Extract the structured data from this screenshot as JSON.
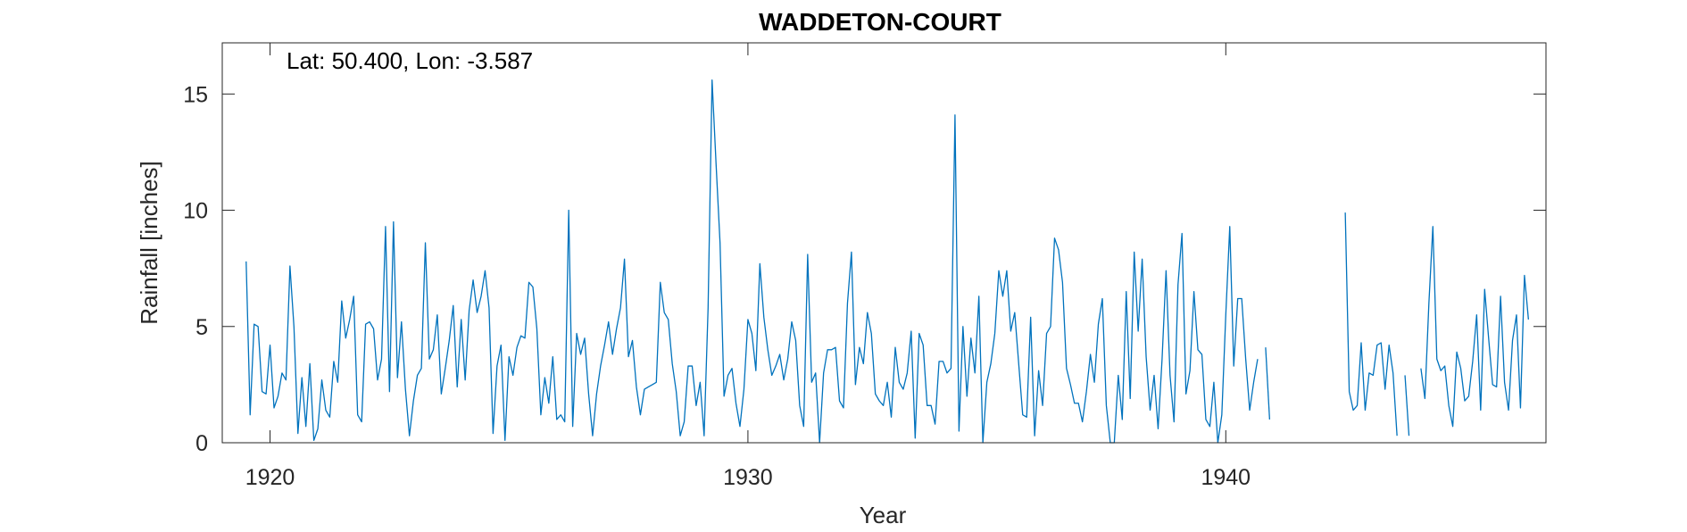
{
  "chart_data": {
    "type": "line",
    "title": "WADDETON-COURT",
    "annotation": "Lat: 50.400, Lon: -3.587",
    "xlabel": "Year",
    "ylabel": "Rainfall [inches]",
    "xlim": [
      1919,
      1946.7
    ],
    "ylim": [
      0,
      17.2
    ],
    "xticks": [
      1920,
      1930,
      1940
    ],
    "yticks": [
      0,
      5,
      10,
      15
    ],
    "xtick_labels": [
      "1920",
      "1930",
      "1940"
    ],
    "ytick_labels": [
      "0",
      "5",
      "10",
      "15"
    ],
    "grid": false,
    "box": true,
    "series": [
      {
        "color": "#0072BD",
        "x_start": 1919.5,
        "x_step": 0.083333,
        "values": [
          7.8,
          1.2,
          5.1,
          5.0,
          2.2,
          2.1,
          4.2,
          1.5,
          2.0,
          3.0,
          2.7,
          7.6,
          5.0,
          0.4,
          2.8,
          0.7,
          3.4,
          0.1,
          0.6,
          2.7,
          1.4,
          1.1,
          3.5,
          2.6,
          6.1,
          4.5,
          5.3,
          6.3,
          1.2,
          0.9,
          5.1,
          5.2,
          4.9,
          2.7,
          3.6,
          9.3,
          2.2,
          9.5,
          2.8,
          5.2,
          2.3,
          0.3,
          1.8,
          2.9,
          3.2,
          8.6,
          3.6,
          4.0,
          5.5,
          2.1,
          3.2,
          4.4,
          5.9,
          2.4,
          5.3,
          2.7,
          5.7,
          7.0,
          5.6,
          6.3,
          7.4,
          5.8,
          0.4,
          3.3,
          4.2,
          0.1,
          3.7,
          2.9,
          4.1,
          4.6,
          4.5,
          6.9,
          6.7,
          4.9,
          1.2,
          2.8,
          1.7,
          3.7,
          1.0,
          1.2,
          0.9,
          10.0,
          0.7,
          4.7,
          3.8,
          4.5,
          2.1,
          0.3,
          2.1,
          3.3,
          4.2,
          5.2,
          3.8,
          4.9,
          5.8,
          7.9,
          3.7,
          4.4,
          2.4,
          1.2,
          2.3,
          2.4,
          2.5,
          2.6,
          6.9,
          5.6,
          5.3,
          3.4,
          2.2,
          0.3,
          0.9,
          3.3,
          3.3,
          1.6,
          2.6,
          0.3,
          5.8,
          15.6,
          12.0,
          8.6,
          2.0,
          2.9,
          3.2,
          1.7,
          0.7,
          2.3,
          5.3,
          4.7,
          3.1,
          7.7,
          5.4,
          4.0,
          2.9,
          3.3,
          3.8,
          2.7,
          3.6,
          5.2,
          4.4,
          1.6,
          0.7,
          8.1,
          2.6,
          3.0,
          0.0,
          3.0,
          4.0,
          4.0,
          4.1,
          1.8,
          1.5,
          6.0,
          8.2,
          2.5,
          4.1,
          3.4,
          5.6,
          4.7,
          2.1,
          1.8,
          1.6,
          2.6,
          1.1,
          4.1,
          2.6,
          2.3,
          3.0,
          4.8,
          0.2,
          4.7,
          4.2,
          1.6,
          1.6,
          0.8,
          3.5,
          3.5,
          3.0,
          3.2,
          14.1,
          0.5,
          5.0,
          2.0,
          4.5,
          3.0,
          6.3,
          0.0,
          2.6,
          3.4,
          4.7,
          7.4,
          6.3,
          7.4,
          4.8,
          5.6,
          3.4,
          1.2,
          1.1,
          5.4,
          0.3,
          3.1,
          1.6,
          4.7,
          5.0,
          8.8,
          8.3,
          6.9,
          3.2,
          2.5,
          1.7,
          1.7,
          0.9,
          2.2,
          3.8,
          2.6,
          5.1,
          6.2,
          1.6,
          0.0,
          0.0,
          2.9,
          1.0,
          6.5,
          1.9,
          8.2,
          4.8,
          7.9,
          3.7,
          1.4,
          2.9,
          0.6,
          3.6,
          7.4,
          2.9,
          0.9,
          6.8,
          9.0,
          2.1,
          3.1,
          6.5,
          4.0,
          3.8,
          1.0,
          0.7,
          2.6,
          0.0,
          1.2,
          5.5,
          9.3,
          3.3,
          6.2,
          6.2,
          3.6,
          1.4,
          2.6,
          3.6,
          null,
          4.1,
          1.0,
          null,
          null,
          null,
          null,
          null,
          null,
          null,
          null,
          null,
          null,
          null,
          null,
          null,
          null,
          null,
          null,
          null,
          null,
          9.9,
          2.2,
          1.4,
          1.6,
          4.3,
          1.4,
          3.0,
          2.9,
          4.2,
          4.3,
          2.3,
          4.2,
          3.0,
          0.3,
          null,
          2.9,
          0.3,
          null,
          null,
          3.2,
          1.9,
          6.0,
          9.3,
          3.6,
          3.1,
          3.3,
          1.6,
          0.7,
          3.9,
          3.2,
          1.8,
          2.0,
          3.5,
          5.5,
          1.4,
          6.6,
          4.5,
          2.5,
          2.4,
          6.3,
          2.6,
          1.4,
          4.4,
          5.5,
          1.5,
          7.2,
          5.3
        ]
      }
    ]
  }
}
